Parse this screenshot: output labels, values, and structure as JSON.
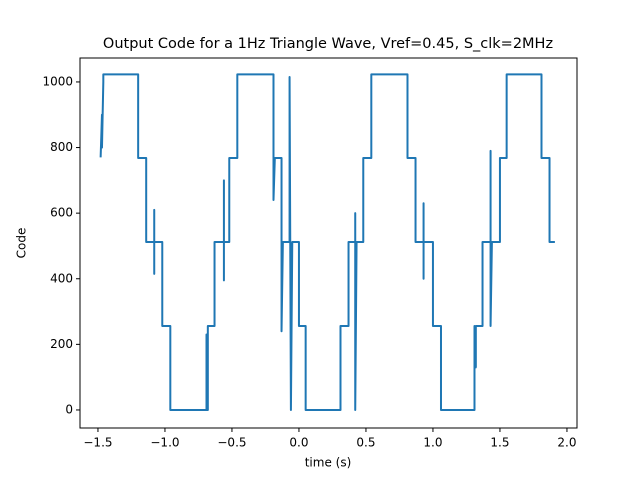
{
  "chart_data": {
    "type": "line",
    "title": "Output Code for a 1Hz Triangle Wave, Vref=0.45, S_clk=2MHz",
    "xlabel": "time (s)",
    "ylabel": "Code",
    "x": [
      -1.48,
      -1.47,
      -1.47,
      -1.46,
      -1.46,
      -1.2,
      -1.2,
      -1.14,
      -1.14,
      -1.08,
      -1.08,
      -1.08,
      -1.08,
      -1.02,
      -1.02,
      -0.96,
      -0.96,
      -0.69,
      -0.69,
      -0.68,
      -0.68,
      -0.63,
      -0.63,
      -0.56,
      -0.56,
      -0.56,
      -0.56,
      -0.52,
      -0.52,
      -0.46,
      -0.46,
      -0.19,
      -0.19,
      -0.18,
      -0.13,
      -0.13,
      -0.12,
      -0.07,
      -0.07,
      -0.06,
      -0.05,
      0.0,
      0.0,
      0.05,
      0.05,
      0.31,
      0.31,
      0.37,
      0.37,
      0.42,
      0.42,
      0.42,
      0.43,
      0.48,
      0.48,
      0.54,
      0.54,
      0.81,
      0.81,
      0.87,
      0.87,
      0.93,
      0.93,
      0.93,
      0.93,
      1.0,
      1.0,
      1.06,
      1.06,
      1.31,
      1.31,
      1.32,
      1.32,
      1.37,
      1.37,
      1.43,
      1.43,
      1.43,
      1.44,
      1.5,
      1.5,
      1.55,
      1.55,
      1.81,
      1.81,
      1.87,
      1.87,
      1.91
    ],
    "series": [
      {
        "color": "#1f77b4",
        "values": [
          770,
          900,
          800,
          1000,
          1023,
          1023,
          768,
          768,
          512,
          512,
          610,
          415,
          512,
          512,
          256,
          256,
          0,
          0,
          230,
          0,
          256,
          256,
          512,
          512,
          700,
          395,
          512,
          512,
          768,
          768,
          1023,
          1023,
          640,
          768,
          768,
          240,
          512,
          512,
          1015,
          0,
          512,
          512,
          256,
          256,
          0,
          0,
          256,
          256,
          512,
          512,
          600,
          0,
          512,
          512,
          768,
          768,
          1023,
          1023,
          768,
          768,
          512,
          512,
          630,
          400,
          512,
          512,
          256,
          256,
          0,
          0,
          256,
          130,
          256,
          256,
          512,
          512,
          790,
          256,
          512,
          512,
          768,
          768,
          1023,
          1023,
          768,
          768,
          512,
          512
        ]
      }
    ],
    "xlim": [
      -1.634,
      2.075
    ],
    "ylim": [
      -55,
      1073
    ],
    "xticks": [
      {
        "value": -1.5,
        "label": "−1.5"
      },
      {
        "value": -1.0,
        "label": "−1.0"
      },
      {
        "value": -0.5,
        "label": "−0.5"
      },
      {
        "value": 0,
        "label": "0.0"
      },
      0.5,
      {
        "value": 1.0,
        "label": "1.0"
      },
      1.5,
      {
        "value": 2.0,
        "label": "2.0"
      }
    ],
    "yticks": [
      0,
      200,
      400,
      600,
      800,
      1000
    ]
  }
}
